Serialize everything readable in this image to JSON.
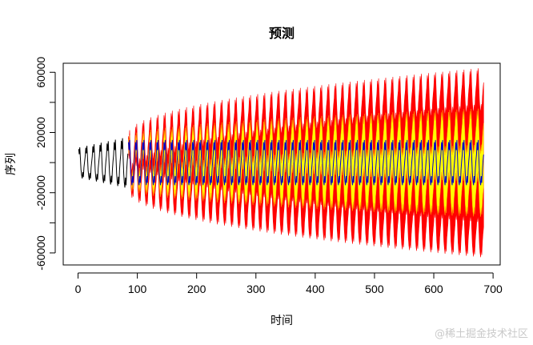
{
  "chart_data": {
    "type": "line",
    "title": "预测",
    "xlabel": "时间",
    "ylabel": "序列",
    "xlim": [
      -25,
      712
    ],
    "ylim": [
      -68000,
      66000
    ],
    "x_ticks": [
      0,
      100,
      200,
      300,
      400,
      500,
      600,
      700
    ],
    "x_tick_labels": [
      "0",
      "100",
      "200",
      "300",
      "400",
      "500",
      "600",
      "700"
    ],
    "y_ticks": [
      -60000,
      -40000,
      -20000,
      0,
      20000,
      40000,
      60000
    ],
    "y_tick_labels": [
      "-60000",
      "",
      "-20000",
      "",
      "20000",
      "",
      "60000"
    ],
    "grid": false,
    "legend": "none",
    "period": 12,
    "series": [
      {
        "role": "observed",
        "color": "#000000",
        "x_range": [
          1,
          84
        ],
        "pattern_amplitude_start": 10000,
        "pattern_amplitude_end": 17000
      },
      {
        "role": "forecast",
        "color": "#0000cc",
        "x_range": [
          85,
          684
        ],
        "pattern_amplitude": 15000
      },
      {
        "role": "prediction_interval_80",
        "color": "#ffff00",
        "x_range": [
          85,
          684
        ],
        "half_width_start": 2000,
        "half_width_end": 21000
      },
      {
        "role": "prediction_interval_95",
        "color": "#ff0000",
        "x_range": [
          85,
          684
        ],
        "half_width_start": 4000,
        "half_width_end": 48000
      }
    ]
  },
  "watermark": "@稀土掘金技术社区"
}
